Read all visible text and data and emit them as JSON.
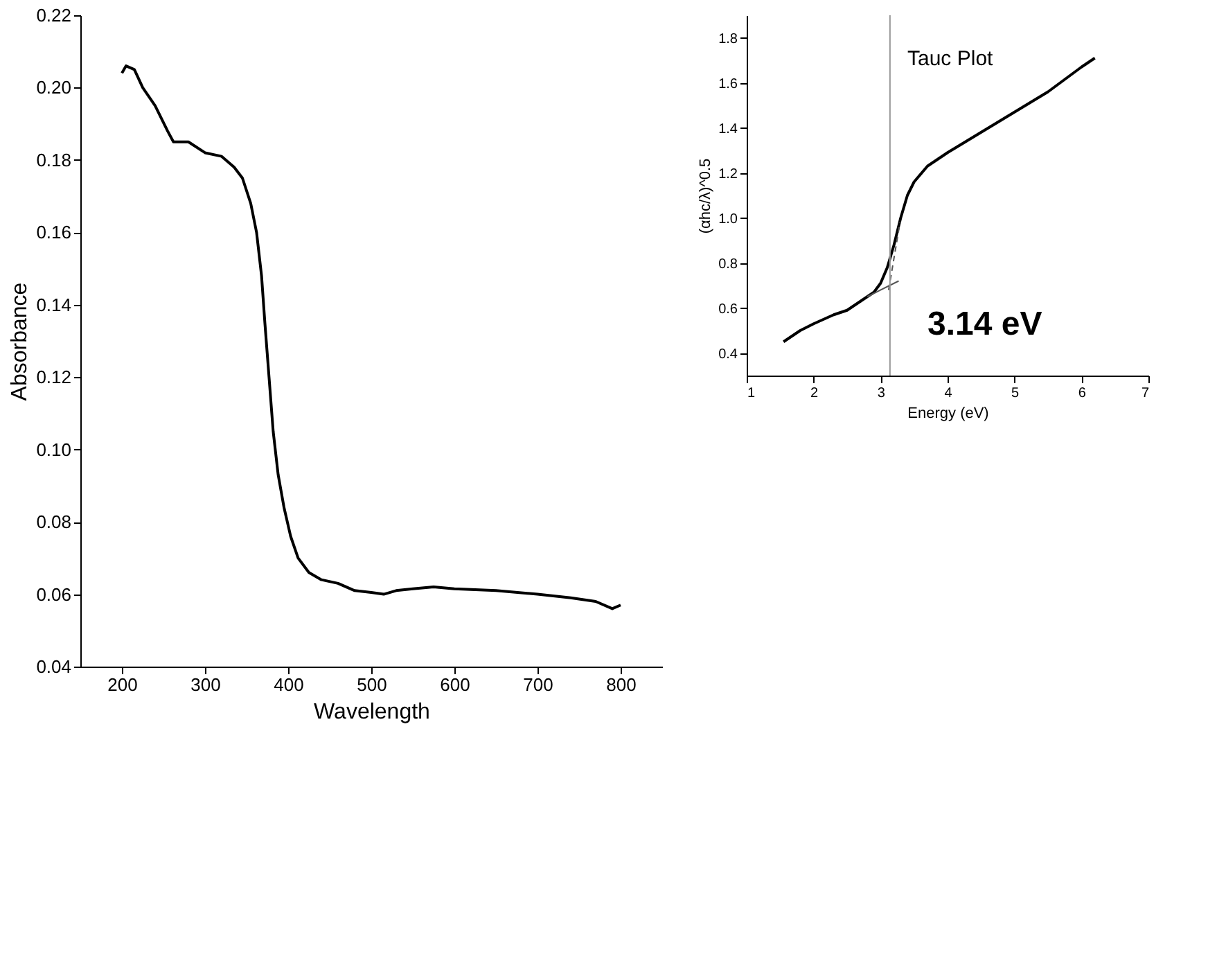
{
  "chart_data": [
    {
      "type": "line",
      "xlabel": "Wavelength",
      "ylabel": "Absorbance",
      "xlim": [
        150,
        850
      ],
      "xticks": [
        200,
        300,
        400,
        500,
        600,
        700,
        800
      ],
      "ylim": [
        0.04,
        0.22
      ],
      "yticks": [
        0.04,
        0.06,
        0.08,
        {
          "value": 0.1,
          "label": "0.10"
        },
        0.12,
        0.14,
        0.16,
        0.18,
        {
          "value": 0.2,
          "label": "0.20"
        },
        0.22
      ],
      "grid": false,
      "marker": "none",
      "series": [
        {
          "color": "#000000",
          "x": [
            200,
            205,
            215,
            225,
            240,
            255,
            262,
            280,
            300,
            320,
            335,
            345,
            355,
            362,
            368,
            372,
            377,
            382,
            388,
            395,
            403,
            412,
            425,
            440,
            460,
            480,
            500,
            515,
            530,
            550,
            575,
            600,
            650,
            700,
            740,
            770,
            790,
            800
          ],
          "values": [
            0.204,
            0.206,
            0.205,
            0.2,
            0.195,
            0.188,
            0.185,
            0.185,
            0.182,
            0.181,
            0.178,
            0.175,
            0.168,
            0.16,
            0.148,
            0.135,
            0.12,
            0.105,
            0.093,
            0.084,
            0.076,
            0.07,
            0.066,
            0.064,
            0.063,
            0.061,
            0.0605,
            0.06,
            0.061,
            0.0615,
            0.062,
            0.0615,
            0.061,
            0.06,
            0.059,
            0.058,
            0.056,
            0.057
          ]
        }
      ]
    },
    {
      "type": "line",
      "xlabel": "Energy (eV)",
      "ylabel": "(αhc/λ)^0.5",
      "xlim": [
        1,
        7
      ],
      "xticks": [
        1,
        2,
        3,
        4,
        5,
        6,
        7
      ],
      "ylim": [
        0.3,
        1.9
      ],
      "yticks": [
        0.4,
        0.6,
        0.8,
        {
          "value": 1,
          "label": "1.0"
        },
        1.2,
        1.4,
        1.6,
        1.8
      ],
      "grid": false,
      "marker": "none",
      "annotations": [
        "Tauc Plot",
        "3.14 eV"
      ],
      "ref_lines": [
        {
          "axis": "x",
          "value": 3.14,
          "color": "#999999"
        }
      ],
      "series": [
        {
          "color": "#000000",
          "x": [
            1.55,
            1.8,
            2.0,
            2.3,
            2.5,
            2.7,
            2.9,
            3.0,
            3.1,
            3.2,
            3.3,
            3.4,
            3.5,
            3.7,
            4.0,
            4.5,
            5.0,
            5.5,
            6.0,
            6.15,
            6.2
          ],
          "values": [
            0.45,
            0.5,
            0.53,
            0.57,
            0.59,
            0.63,
            0.67,
            0.71,
            0.78,
            0.88,
            1.0,
            1.1,
            1.16,
            1.23,
            1.29,
            1.38,
            1.47,
            1.56,
            1.67,
            1.7,
            1.71
          ]
        },
        {
          "type": "line",
          "color": "#555555",
          "x": [
            2.8,
            3.27
          ],
          "values": [
            0.65,
            0.72
          ]
        },
        {
          "type": "line",
          "color": "#555555",
          "line_style": "dashed",
          "x": [
            3.12,
            3.29
          ],
          "values": [
            0.68,
            0.98
          ]
        }
      ]
    }
  ]
}
